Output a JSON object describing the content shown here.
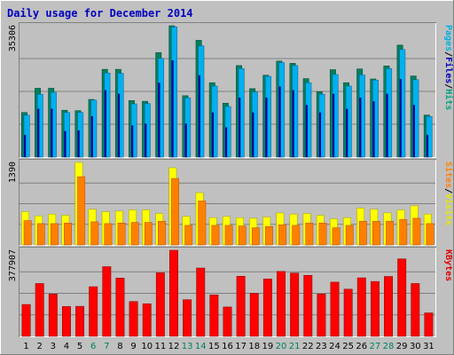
{
  "chart_data": [
    {
      "type": "bar",
      "title": "Daily usage for December 2014",
      "axis_max_label": "35306",
      "ylim": [
        0,
        35306
      ],
      "categories": [
        "1",
        "2",
        "3",
        "4",
        "5",
        "6",
        "7",
        "8",
        "9",
        "10",
        "11",
        "12",
        "13",
        "14",
        "15",
        "16",
        "17",
        "18",
        "19",
        "20",
        "21",
        "22",
        "23",
        "24",
        "25",
        "26",
        "27",
        "28",
        "29",
        "30",
        "31"
      ],
      "legend": [
        {
          "text": "Hits",
          "color": "#00a080"
        },
        {
          "text": "/",
          "color": "#000000"
        },
        {
          "text": "Files",
          "color": "#0000b8"
        },
        {
          "text": "/",
          "color": "#000000"
        },
        {
          "text": "Pages",
          "color": "#00b0e0"
        }
      ],
      "series": [
        {
          "name": "Hits",
          "color": "#008060",
          "values": [
            12000,
            18500,
            18500,
            12600,
            12500,
            15500,
            23600,
            23600,
            15200,
            15000,
            28100,
            35306,
            16500,
            31400,
            20000,
            14500,
            24600,
            18400,
            22000,
            25800,
            25200,
            21100,
            17600,
            23500,
            20000,
            23700,
            21000,
            24500,
            30100,
            21800,
            11300
          ]
        },
        {
          "name": "Files",
          "color": "#0000a0",
          "values": [
            6000,
            13000,
            13000,
            7000,
            7200,
            11000,
            18000,
            17000,
            8500,
            9000,
            20000,
            26000,
            9000,
            22000,
            12000,
            8000,
            16000,
            12000,
            16000,
            19000,
            18000,
            14000,
            12000,
            17000,
            13000,
            16000,
            15000,
            17000,
            21000,
            14000,
            6000
          ]
        },
        {
          "name": "Pages",
          "color": "#00b0f0",
          "values": [
            11300,
            16900,
            17400,
            12000,
            12000,
            15300,
            22600,
            22500,
            14300,
            14400,
            26500,
            35000,
            15900,
            29900,
            19100,
            13600,
            23800,
            17500,
            21700,
            25400,
            24600,
            20000,
            16900,
            22200,
            19100,
            22100,
            20700,
            23800,
            28900,
            20800,
            10900
          ]
        }
      ]
    },
    {
      "type": "bar",
      "axis_max_label": "1390",
      "ylim": [
        0,
        1390
      ],
      "legend": [
        {
          "text": "Visits",
          "color": "#e8e800"
        },
        {
          "text": "/",
          "color": "#000000"
        },
        {
          "text": "Sites",
          "color": "#ff8000"
        }
      ],
      "series": [
        {
          "name": "Visits",
          "color": "#ffff00",
          "values": [
            560,
            490,
            520,
            500,
            1390,
            600,
            560,
            570,
            590,
            590,
            530,
            1300,
            480,
            880,
            460,
            480,
            460,
            450,
            470,
            540,
            520,
            530,
            500,
            440,
            460,
            620,
            600,
            540,
            590,
            660,
            520
          ]
        },
        {
          "name": "Sites",
          "color": "#ff8000",
          "values": [
            410,
            360,
            360,
            370,
            1150,
            390,
            360,
            370,
            380,
            380,
            400,
            1120,
            330,
            740,
            330,
            330,
            320,
            290,
            310,
            340,
            330,
            370,
            370,
            290,
            330,
            400,
            400,
            400,
            430,
            450,
            360
          ]
        }
      ]
    },
    {
      "type": "bar",
      "axis_max_label": "377907",
      "ylim": [
        0,
        377907
      ],
      "legend": [
        {
          "text": "KBytes",
          "color": "#e00000"
        }
      ],
      "series": [
        {
          "name": "KBytes",
          "color": "#ff0000",
          "values": [
            140000,
            232000,
            186000,
            131000,
            132000,
            218000,
            306000,
            256000,
            153000,
            143000,
            279000,
            377907,
            161000,
            300000,
            182000,
            129000,
            264000,
            189000,
            252000,
            285000,
            278000,
            268000,
            186000,
            238000,
            207000,
            257000,
            241000,
            263000,
            340000,
            232000,
            103000
          ]
        }
      ]
    }
  ],
  "x_axis": {
    "labels": [
      "1",
      "2",
      "3",
      "4",
      "5",
      "6",
      "7",
      "8",
      "9",
      "10",
      "11",
      "12",
      "13",
      "14",
      "15",
      "16",
      "17",
      "18",
      "19",
      "20",
      "21",
      "22",
      "23",
      "24",
      "25",
      "26",
      "27",
      "28",
      "29",
      "30",
      "31"
    ],
    "weekend_days": [
      6,
      7,
      13,
      14,
      20,
      21,
      27,
      28
    ],
    "label_color": "#000000",
    "weekend_color": "#008060"
  },
  "colors": {
    "background": "#c0c0c0",
    "title": "#0000c0",
    "gridline": "#808080"
  }
}
